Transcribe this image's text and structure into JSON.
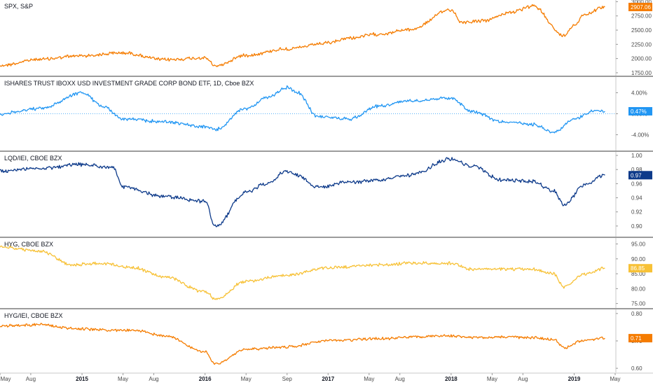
{
  "chart_data": [
    {
      "type": "line",
      "title": "SPX, S&P",
      "color": "#f57c00",
      "last_value_label": "2907.06",
      "y_ticks": [
        1750,
        2000,
        2250,
        2500,
        2750,
        3000
      ],
      "y_tick_labels": [
        "1750.00",
        "2000.00",
        "2250.00",
        "2500.00",
        "2750.00",
        "3000.00"
      ],
      "ylim": [
        1700,
        3030
      ],
      "x": [
        "2014-05",
        "2014-09",
        "2015-01",
        "2015-05",
        "2015-09",
        "2016-01",
        "2016-02",
        "2016-05",
        "2016-09",
        "2017-01",
        "2017-03",
        "2017-06",
        "2017-09",
        "2018-01",
        "2018-02",
        "2018-04",
        "2018-07",
        "2018-09",
        "2018-12",
        "2019-01",
        "2019-02",
        "2019-04"
      ],
      "values": [
        1880,
        1990,
        2050,
        2100,
        1980,
        2010,
        1870,
        2060,
        2170,
        2270,
        2360,
        2430,
        2510,
        2860,
        2640,
        2660,
        2820,
        2920,
        2400,
        2590,
        2780,
        2907
      ]
    },
    {
      "type": "line",
      "title": "ISHARES TRUST IBOXX USD INVESTMENT GRADE CORP BOND ETF, 1D, Cboe BZX",
      "color": "#2196f3",
      "last_value_label": "0.47%",
      "reference_value": 0,
      "y_ticks": [
        -4,
        0,
        4
      ],
      "y_tick_labels": [
        "-4.00%",
        "0.00%",
        "4.00%"
      ],
      "ylim": [
        -7,
        7
      ],
      "x": [
        "2014-05",
        "2014-09",
        "2015-01",
        "2015-03",
        "2015-05",
        "2015-09",
        "2016-01",
        "2016-02",
        "2016-05",
        "2016-07",
        "2016-09",
        "2016-10",
        "2016-12",
        "2017-03",
        "2017-06",
        "2017-09",
        "2018-01",
        "2018-03",
        "2018-06",
        "2018-09",
        "2018-11",
        "2019-01",
        "2019-03",
        "2019-04"
      ],
      "values": [
        0,
        1,
        4,
        1.5,
        -1,
        -1.5,
        -2.5,
        -3,
        1,
        3,
        5,
        4,
        -0.5,
        -1,
        1.5,
        2.5,
        3,
        0.5,
        -1.5,
        -2,
        -3.5,
        -1,
        0.5,
        0.47
      ]
    },
    {
      "type": "line",
      "title": "LQD/IEI, CBOE BZX",
      "color": "#0d3a8a",
      "last_value_label": "0.97",
      "y_ticks": [
        0.9,
        0.92,
        0.94,
        0.96,
        0.98,
        1.0
      ],
      "y_tick_labels": [
        "0.90",
        "0.92",
        "0.94",
        "0.96",
        "0.98",
        "1.00"
      ],
      "ylim": [
        0.885,
        1.005
      ],
      "x": [
        "2014-05",
        "2014-09",
        "2015-01",
        "2015-04",
        "2015-05",
        "2015-09",
        "2016-01",
        "2016-02",
        "2016-05",
        "2016-07",
        "2016-09",
        "2016-10",
        "2016-12",
        "2017-03",
        "2017-06",
        "2017-09",
        "2018-01",
        "2018-03",
        "2018-06",
        "2018-09",
        "2018-11",
        "2018-12",
        "2019-02",
        "2019-04"
      ],
      "values": [
        0.978,
        0.982,
        0.987,
        0.983,
        0.955,
        0.942,
        0.935,
        0.9,
        0.948,
        0.96,
        0.978,
        0.972,
        0.955,
        0.962,
        0.965,
        0.972,
        0.995,
        0.985,
        0.965,
        0.963,
        0.95,
        0.93,
        0.958,
        0.972
      ]
    },
    {
      "type": "line",
      "title": "HYG, CBOE BZX",
      "color": "#f7c136",
      "last_value_label": "86.85",
      "y_ticks": [
        75,
        80,
        85,
        90,
        95
      ],
      "y_tick_labels": [
        "75.00",
        "80.00",
        "85.00",
        "90.00",
        "95.00"
      ],
      "ylim": [
        73.5,
        97
      ],
      "x": [
        "2014-05",
        "2014-09",
        "2014-12",
        "2015-03",
        "2015-06",
        "2015-09",
        "2016-01",
        "2016-02",
        "2016-05",
        "2016-09",
        "2017-01",
        "2017-06",
        "2017-09",
        "2018-01",
        "2018-03",
        "2018-06",
        "2018-09",
        "2018-11",
        "2018-12",
        "2019-02",
        "2019-04"
      ],
      "values": [
        94,
        92.5,
        88,
        88.5,
        87,
        84,
        79,
        76.5,
        82.5,
        84.5,
        87,
        88,
        88.5,
        88.5,
        86.5,
        86.5,
        86.5,
        85,
        80.5,
        85,
        86.85
      ]
    },
    {
      "type": "line",
      "title": "HYG/IEI, CBOE BZX",
      "color": "#f57c00",
      "last_value_label": "0.71",
      "y_ticks": [
        0.6,
        0.7,
        0.8
      ],
      "y_tick_labels": [
        "0.60",
        "0.70",
        "0.80"
      ],
      "ylim": [
        0.585,
        0.815
      ],
      "x": [
        "2014-05",
        "2014-09",
        "2014-12",
        "2015-03",
        "2015-06",
        "2015-09",
        "2016-01",
        "2016-02",
        "2016-05",
        "2016-09",
        "2017-01",
        "2017-06",
        "2017-09",
        "2018-01",
        "2018-03",
        "2018-06",
        "2018-09",
        "2018-11",
        "2018-12",
        "2019-02",
        "2019-04"
      ],
      "values": [
        0.755,
        0.76,
        0.745,
        0.74,
        0.738,
        0.72,
        0.66,
        0.615,
        0.67,
        0.678,
        0.7,
        0.708,
        0.714,
        0.718,
        0.712,
        0.715,
        0.712,
        0.706,
        0.675,
        0.702,
        0.71
      ]
    }
  ],
  "x_axis": {
    "labels": [
      {
        "text": "May",
        "date": "2014-05",
        "bold": false
      },
      {
        "text": "Aug",
        "date": "2014-08",
        "bold": false
      },
      {
        "text": "2015",
        "date": "2015-01",
        "bold": true
      },
      {
        "text": "May",
        "date": "2015-05",
        "bold": false
      },
      {
        "text": "Aug",
        "date": "2015-08",
        "bold": false
      },
      {
        "text": "2016",
        "date": "2016-01",
        "bold": true
      },
      {
        "text": "May",
        "date": "2016-05",
        "bold": false
      },
      {
        "text": "Sep",
        "date": "2016-09",
        "bold": false
      },
      {
        "text": "2017",
        "date": "2017-01",
        "bold": true
      },
      {
        "text": "May",
        "date": "2017-05",
        "bold": false
      },
      {
        "text": "Aug",
        "date": "2017-08",
        "bold": false
      },
      {
        "text": "2018",
        "date": "2018-01",
        "bold": true
      },
      {
        "text": "May",
        "date": "2018-05",
        "bold": false
      },
      {
        "text": "Aug",
        "date": "2018-08",
        "bold": false
      },
      {
        "text": "2019",
        "date": "2019-01",
        "bold": true
      },
      {
        "text": "May",
        "date": "2019-05",
        "bold": false
      }
    ]
  }
}
